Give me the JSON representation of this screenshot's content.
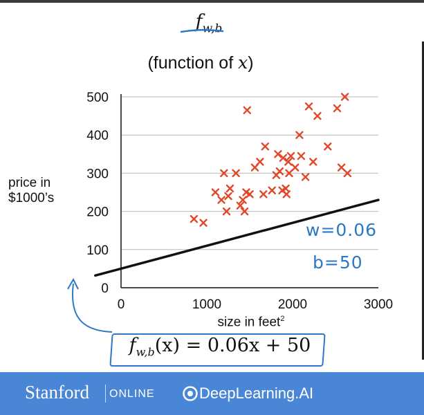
{
  "header": {
    "function_name": "f",
    "function_subscript": "w,b",
    "subtitle_prefix": "(function of ",
    "subtitle_variable": "x",
    "subtitle_suffix": ")"
  },
  "chart_data": {
    "type": "scatter",
    "xlabel": "size in feet",
    "xlabel_superscript": "2",
    "ylabel_line1": "price in",
    "ylabel_line2": "$1000’s",
    "xlim": [
      0,
      3000
    ],
    "ylim": [
      0,
      500
    ],
    "x_ticks": [
      0,
      1000,
      2000,
      3000
    ],
    "y_ticks": [
      0,
      100,
      200,
      300,
      400,
      500
    ],
    "grid": "horizontal",
    "marker": "x",
    "marker_color": "#e0482a",
    "line_color": "#111111",
    "points": [
      [
        850,
        180
      ],
      [
        960,
        170
      ],
      [
        1100,
        250
      ],
      [
        1170,
        230
      ],
      [
        1200,
        300
      ],
      [
        1230,
        200
      ],
      [
        1250,
        240
      ],
      [
        1270,
        260
      ],
      [
        1340,
        300
      ],
      [
        1390,
        215
      ],
      [
        1420,
        230
      ],
      [
        1440,
        200
      ],
      [
        1460,
        250
      ],
      [
        1470,
        465
      ],
      [
        1500,
        245
      ],
      [
        1560,
        315
      ],
      [
        1620,
        330
      ],
      [
        1660,
        245
      ],
      [
        1680,
        370
      ],
      [
        1760,
        255
      ],
      [
        1810,
        295
      ],
      [
        1830,
        350
      ],
      [
        1850,
        305
      ],
      [
        1880,
        255
      ],
      [
        1890,
        340
      ],
      [
        1920,
        260
      ],
      [
        1930,
        245
      ],
      [
        1950,
        330
      ],
      [
        1960,
        300
      ],
      [
        1980,
        345
      ],
      [
        2030,
        315
      ],
      [
        2080,
        400
      ],
      [
        2100,
        345
      ],
      [
        2150,
        290
      ],
      [
        2190,
        475
      ],
      [
        2240,
        330
      ],
      [
        2290,
        450
      ],
      [
        2410,
        370
      ],
      [
        2520,
        470
      ],
      [
        2570,
        315
      ],
      [
        2610,
        500
      ],
      [
        2640,
        300
      ]
    ],
    "fit_line": {
      "w": 0.06,
      "b": 50,
      "x_range": [
        -300,
        3000
      ]
    }
  },
  "annotations": {
    "w_label": "w=0.06",
    "b_label": "b=50",
    "eq_f": "f",
    "eq_sub": "w,b",
    "eq_rest": "(x) = 0.06x + 50",
    "arrow_color": "#2b78c5"
  },
  "footer": {
    "stanford": "Stanford",
    "online": "ONLINE",
    "deeplearning": "DeepLearning.AI",
    "background": "#4a86d6"
  }
}
